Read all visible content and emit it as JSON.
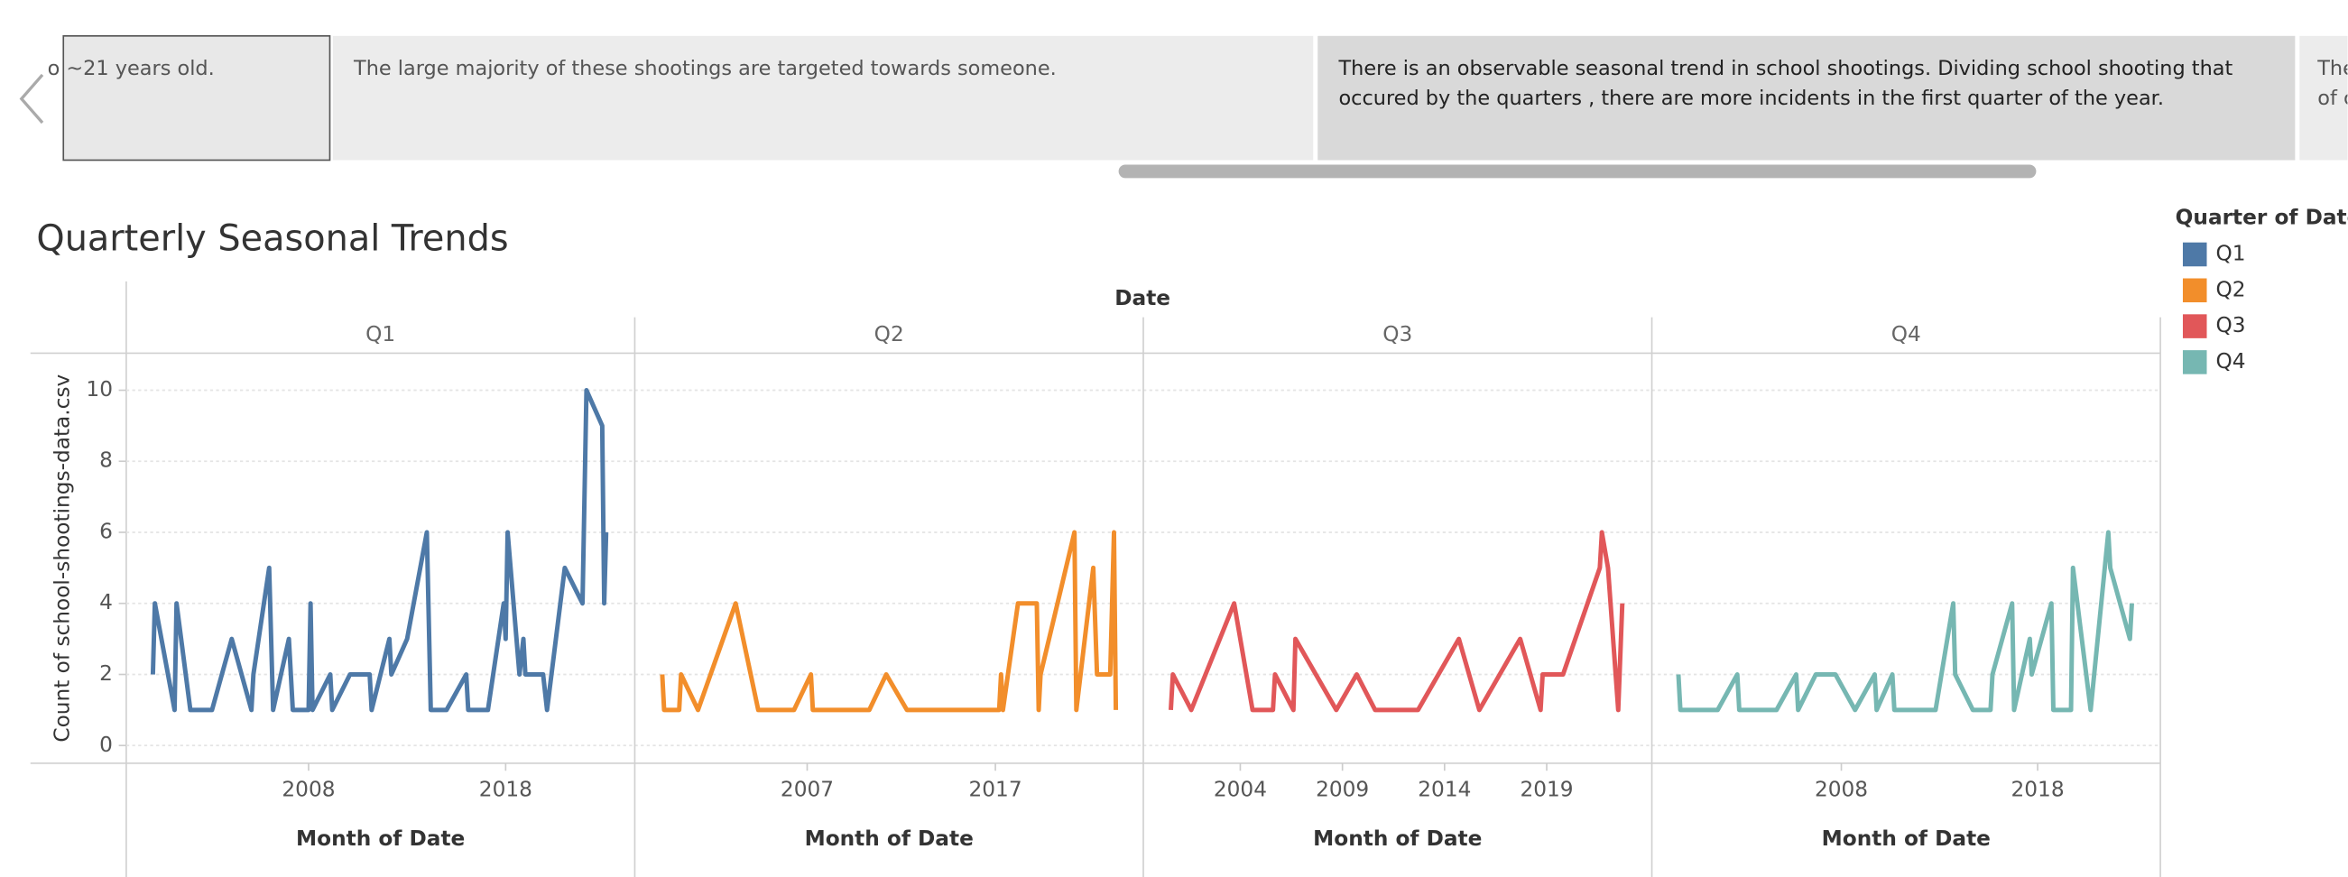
{
  "story": {
    "points": [
      "o ~21 years old.",
      "The large majority of these shootings are targeted towards someone.",
      "There is an observable seasonal trend in school shootings. Dividing school shooting that occured by the quarters , there are more incidents in the first quarter of the year.",
      "The of c"
    ]
  },
  "chart_data": {
    "type": "line",
    "title": "Quarterly Seasonal Trends",
    "column_header": "Date",
    "y_label": "Count of school-shootings-data.csv",
    "x_label": "Month of Date",
    "legend_title": "Quarter of Date",
    "ylim": [
      -0.5,
      11
    ],
    "yticks": [
      0,
      2,
      4,
      6,
      8,
      10
    ],
    "grid": true,
    "series": [
      {
        "name": "Q1",
        "color": "#4e79a7",
        "xlim": [
          1998.9,
          2024.4
        ],
        "xticks": [
          2008,
          2018
        ],
        "x": [
          2000.1,
          2000.2,
          2001.2,
          2001.3,
          2002.0,
          2003.1,
          2004.1,
          2005.1,
          2005.2,
          2006.0,
          2006.2,
          2007.0,
          2007.2,
          2008.0,
          2008.1,
          2008.2,
          2009.1,
          2009.2,
          2010.1,
          2011.1,
          2011.2,
          2012.1,
          2012.2,
          2013.0,
          2014.0,
          2014.2,
          2015.0,
          2016.0,
          2016.1,
          2017.1,
          2017.9,
          2018.0,
          2018.1,
          2018.7,
          2018.9,
          2019.0,
          2019.9,
          2020.1,
          2021.0,
          2021.9,
          2022.1,
          2022.9,
          2023.0,
          2023.1
        ],
        "values": [
          2,
          4,
          1,
          4,
          1,
          1,
          3,
          1,
          2,
          5,
          1,
          3,
          1,
          1,
          4,
          1,
          2,
          1,
          2,
          2,
          1,
          3,
          2,
          3,
          6,
          1,
          1,
          2,
          1,
          1,
          4,
          3,
          6,
          2,
          3,
          2,
          2,
          1,
          5,
          4,
          10,
          9,
          4,
          6
        ]
      },
      {
        "name": "Q2",
        "color": "#f28e2b",
        "xlim": [
          1998.0,
          2024.7
        ],
        "xticks": [
          2007,
          2017
        ],
        "x": [
          1999.3,
          1999.4,
          2000.2,
          2000.3,
          2001.2,
          2003.2,
          2004.4,
          2006.3,
          2007.2,
          2007.3,
          2010.3,
          2011.2,
          2012.3,
          2017.2,
          2017.3,
          2017.4,
          2018.2,
          2019.2,
          2019.3,
          2019.4,
          2021.2,
          2021.3,
          2022.2,
          2022.4,
          2023.1,
          2023.3,
          2023.4
        ],
        "values": [
          2,
          1,
          1,
          2,
          1,
          4,
          1,
          1,
          2,
          1,
          1,
          2,
          1,
          1,
          2,
          1,
          4,
          4,
          1,
          2,
          6,
          1,
          5,
          2,
          2,
          6,
          1
        ]
      },
      {
        "name": "Q3",
        "color": "#e15759",
        "xlim": [
          1999.4,
          2024.0
        ],
        "xticks": [
          2004,
          2009,
          2014,
          2019
        ],
        "x": [
          2000.6,
          2000.7,
          2001.6,
          2003.7,
          2004.6,
          2005.6,
          2005.7,
          2006.6,
          2006.7,
          2008.7,
          2009.7,
          2010.6,
          2012.7,
          2013.7,
          2014.7,
          2015.7,
          2017.7,
          2018.7,
          2018.8,
          2019.8,
          2021.6,
          2021.7,
          2022.0,
          2022.5,
          2022.7
        ],
        "values": [
          1,
          2,
          1,
          4,
          1,
          1,
          2,
          1,
          3,
          1,
          2,
          1,
          1,
          2,
          3,
          1,
          3,
          1,
          2,
          2,
          5,
          6,
          5,
          1,
          4
        ]
      },
      {
        "name": "Q4",
        "color": "#76b7b2",
        "xlim": [
          1998.5,
          2024.1
        ],
        "xticks": [
          2008,
          2018
        ],
        "x": [
          1999.7,
          1999.8,
          2001.7,
          2002.7,
          2002.8,
          2004.7,
          2005.7,
          2005.8,
          2006.7,
          2007.7,
          2008.7,
          2009.7,
          2009.8,
          2010.6,
          2010.7,
          2012.8,
          2013.7,
          2013.8,
          2014.7,
          2015.6,
          2015.7,
          2016.7,
          2016.8,
          2017.6,
          2017.7,
          2018.7,
          2018.8,
          2019.7,
          2019.8,
          2020.7,
          2021.6,
          2021.7,
          2022.7,
          2022.8
        ],
        "values": [
          2,
          1,
          1,
          2,
          1,
          1,
          2,
          1,
          2,
          2,
          1,
          2,
          1,
          2,
          1,
          1,
          4,
          2,
          1,
          1,
          2,
          4,
          1,
          3,
          2,
          4,
          1,
          1,
          5,
          1,
          6,
          5,
          3,
          4
        ]
      }
    ]
  }
}
